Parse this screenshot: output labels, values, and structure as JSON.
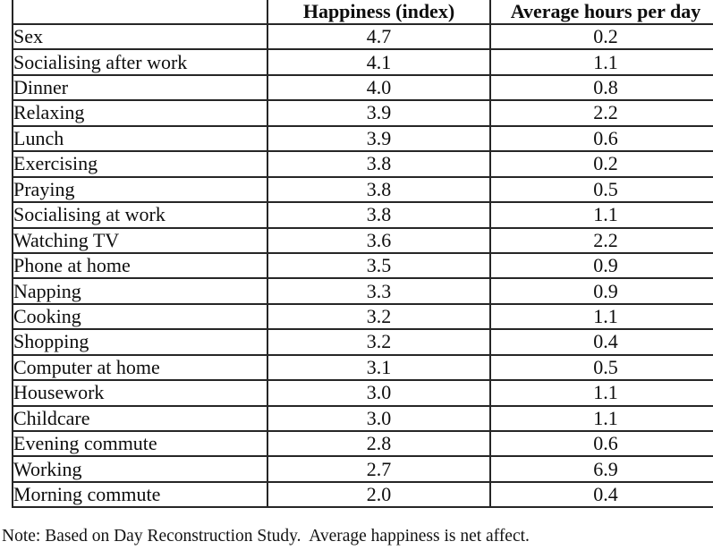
{
  "table": {
    "columns": [
      "",
      "Happiness (index)",
      "Average hours per day"
    ],
    "rows": [
      {
        "activity": "Sex",
        "happiness": "4.7",
        "hours": "0.2"
      },
      {
        "activity": "Socialising after work",
        "happiness": "4.1",
        "hours": "1.1"
      },
      {
        "activity": "Dinner",
        "happiness": "4.0",
        "hours": "0.8"
      },
      {
        "activity": "Relaxing",
        "happiness": "3.9",
        "hours": "2.2"
      },
      {
        "activity": "Lunch",
        "happiness": "3.9",
        "hours": "0.6"
      },
      {
        "activity": "Exercising",
        "happiness": "3.8",
        "hours": "0.2"
      },
      {
        "activity": "Praying",
        "happiness": "3.8",
        "hours": "0.5"
      },
      {
        "activity": "Socialising at work",
        "happiness": "3.8",
        "hours": "1.1"
      },
      {
        "activity": "Watching TV",
        "happiness": "3.6",
        "hours": "2.2"
      },
      {
        "activity": "Phone at home",
        "happiness": "3.5",
        "hours": "0.9"
      },
      {
        "activity": "Napping",
        "happiness": "3.3",
        "hours": "0.9"
      },
      {
        "activity": "Cooking",
        "happiness": "3.2",
        "hours": "1.1"
      },
      {
        "activity": "Shopping",
        "happiness": "3.2",
        "hours": "0.4"
      },
      {
        "activity": "Computer at home",
        "happiness": "3.1",
        "hours": "0.5"
      },
      {
        "activity": "Housework",
        "happiness": "3.0",
        "hours": "1.1"
      },
      {
        "activity": "Childcare",
        "happiness": "3.0",
        "hours": "1.1"
      },
      {
        "activity": "Evening commute",
        "happiness": "2.8",
        "hours": "0.6"
      },
      {
        "activity": "Working",
        "happiness": "2.7",
        "hours": "6.9"
      },
      {
        "activity": "Morning commute",
        "happiness": "2.0",
        "hours": "0.4"
      }
    ]
  },
  "note": "Note: Based on Day Reconstruction Study.  Average happiness is net affect."
}
